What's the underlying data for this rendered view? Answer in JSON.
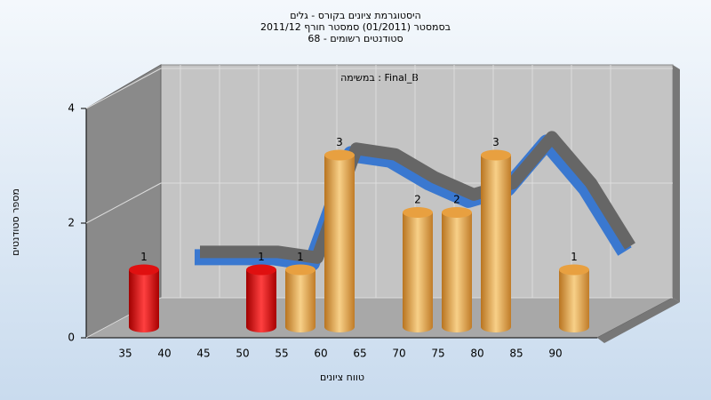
{
  "chart_data": {
    "type": "bar",
    "title": "היסטוגרמת ציונים בקורס - גלים",
    "subtitle": "בסמסטר  (01/2011)  סמסטר חורף 2011/12",
    "subtitle2": "סטודנטים רשומים - 68",
    "annotation": "במשימה : Final_B",
    "x_label": "טווח ציונים",
    "y_label": "מספר סטודנטים",
    "categories": [
      "35",
      "40",
      "45",
      "50",
      "55",
      "60",
      "65",
      "70",
      "75",
      "80",
      "85",
      "90"
    ],
    "values": [
      1,
      0,
      0,
      1,
      1,
      3,
      0,
      2,
      2,
      3,
      0,
      1
    ],
    "colors": [
      "#e01010",
      "#e8a040",
      "#e8a040",
      "#e01010",
      "#e8a040",
      "#e8a040",
      "#e8a040",
      "#e8a040",
      "#e8a040",
      "#e8a040",
      "#e8a040",
      "#e8a040"
    ],
    "trend": [
      0.8,
      0.8,
      0.8,
      0.7,
      2.6,
      2.5,
      2.1,
      1.8,
      2.0,
      2.8,
      2.0,
      0.9
    ],
    "trend_color": "#666666",
    "ylim": [
      0,
      4
    ],
    "yticks": [
      0,
      2,
      4
    ],
    "grid": true
  }
}
